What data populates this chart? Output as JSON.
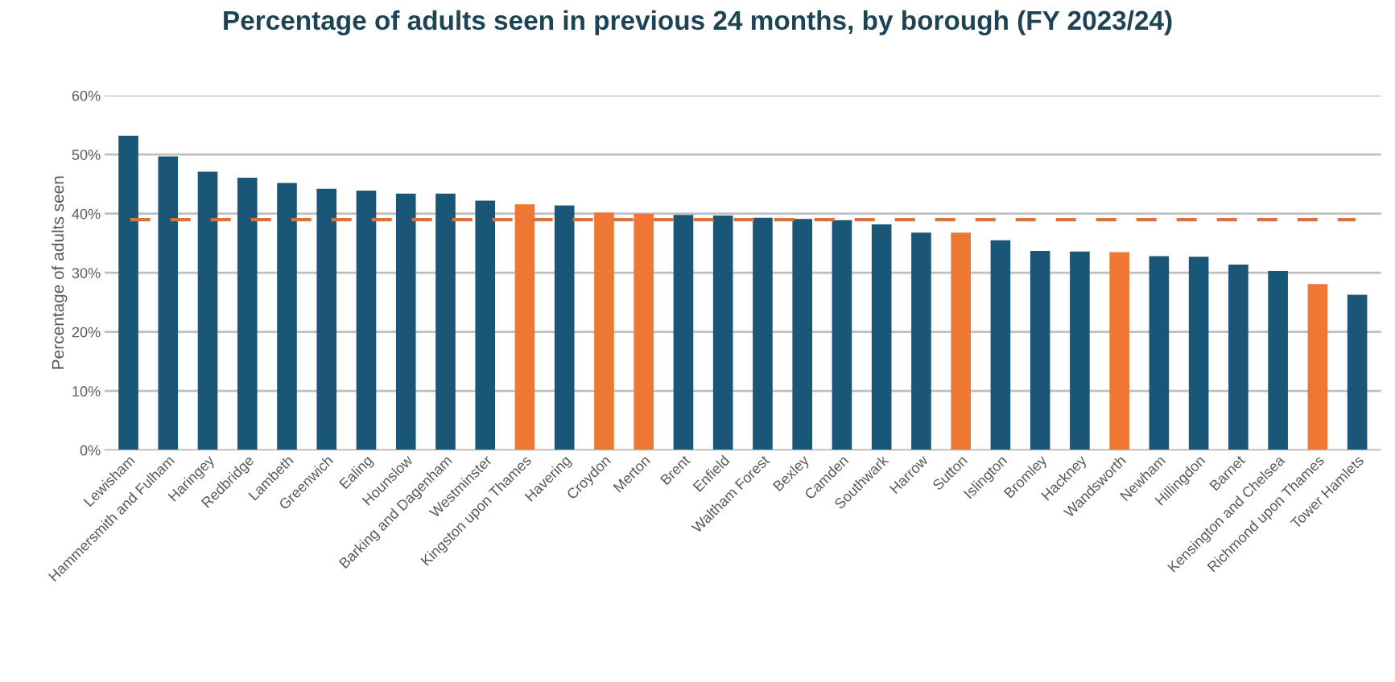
{
  "chart_data": {
    "type": "bar",
    "title": "Percentage of adults seen in previous 24 months, by borough (FY 2023/24)",
    "ylabel": "Percentage of adults seen",
    "categories": [
      "Lewisham",
      "Hammersmith and Fulham",
      "Haringey",
      "Redbridge",
      "Lambeth",
      "Greenwich",
      "Ealing",
      "Hounslow",
      "Barking and Dagenham",
      "Westminster",
      "Kingston upon Thames",
      "Havering",
      "Croydon",
      "Merton",
      "Brent",
      "Enfield",
      "Waltham Forest",
      "Bexley",
      "Camden",
      "Southwark",
      "Harrow",
      "Sutton",
      "Islington",
      "Bromley",
      "Hackney",
      "Wandsworth",
      "Newham",
      "Hillingdon",
      "Barnet",
      "Kensington and Chelsea",
      "Richmond upon Thames",
      "Tower Hamlets"
    ],
    "values": [
      53.2,
      49.7,
      47.1,
      46.1,
      45.2,
      44.2,
      43.9,
      43.4,
      43.4,
      42.2,
      41.6,
      41.4,
      40.2,
      40.0,
      39.8,
      39.7,
      39.3,
      39.1,
      38.9,
      38.2,
      36.8,
      36.8,
      35.5,
      33.7,
      33.6,
      33.5,
      32.8,
      32.7,
      31.4,
      30.3,
      28.1,
      26.3
    ],
    "colors": [
      "#1a5677",
      "#1a5677",
      "#1a5677",
      "#1a5677",
      "#1a5677",
      "#1a5677",
      "#1a5677",
      "#1a5677",
      "#1a5677",
      "#1a5677",
      "#ee7733",
      "#1a5677",
      "#ee7733",
      "#ee7733",
      "#1a5677",
      "#1a5677",
      "#1a5677",
      "#1a5677",
      "#1a5677",
      "#1a5677",
      "#1a5677",
      "#ee7733",
      "#1a5677",
      "#1a5677",
      "#1a5677",
      "#ee7733",
      "#1a5677",
      "#1a5677",
      "#1a5677",
      "#1a5677",
      "#ee7733",
      "#1a5677"
    ],
    "ylim": [
      0,
      60
    ],
    "yticks": [
      {
        "value": 0,
        "label": "0%"
      },
      {
        "value": 10,
        "label": "10%"
      },
      {
        "value": 20,
        "label": "20%"
      },
      {
        "value": 30,
        "label": "30%"
      },
      {
        "value": 40,
        "label": "40%"
      },
      {
        "value": 50,
        "label": "50%"
      },
      {
        "value": 60,
        "label": "60%"
      }
    ],
    "grid": "y",
    "ref_lines": [
      {
        "axis": "y",
        "value": 39,
        "color": "#d9733b",
        "line_style": "dashed"
      }
    ]
  }
}
